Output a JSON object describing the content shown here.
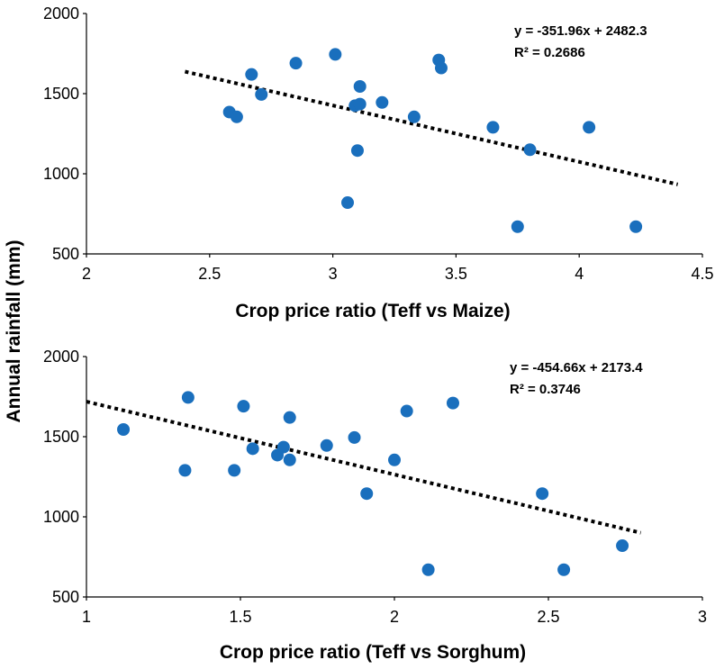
{
  "ylabel": "Annual rainfall (mm)",
  "chart_data": [
    {
      "type": "scatter",
      "xlabel": "Crop price ratio (Teff vs Maize)",
      "xlim": [
        2,
        4.5
      ],
      "ylim": [
        500,
        2000
      ],
      "xticks": [
        "2",
        "2.5",
        "3",
        "3.5",
        "4",
        "4.5"
      ],
      "yticks": [
        "500",
        "1000",
        "1500",
        "2000"
      ],
      "equation": "y = -351.96x + 2482.3",
      "r2": "R² = 0.2686",
      "trend": {
        "slope": -351.96,
        "intercept": 2482.3,
        "x_range": [
          2.4,
          4.4
        ]
      },
      "marker_color": "#1a6fbd",
      "points": [
        [
          2.58,
          1385
        ],
        [
          2.61,
          1355
        ],
        [
          2.67,
          1620
        ],
        [
          2.71,
          1495
        ],
        [
          2.85,
          1690
        ],
        [
          3.01,
          1745
        ],
        [
          3.06,
          820
        ],
        [
          3.09,
          1425
        ],
        [
          3.1,
          1145
        ],
        [
          3.11,
          1545
        ],
        [
          3.11,
          1435
        ],
        [
          3.2,
          1445
        ],
        [
          3.33,
          1355
        ],
        [
          3.43,
          1710
        ],
        [
          3.44,
          1660
        ],
        [
          3.65,
          1290
        ],
        [
          3.75,
          670
        ],
        [
          3.8,
          1150
        ],
        [
          4.04,
          1290
        ],
        [
          4.23,
          670
        ]
      ]
    },
    {
      "type": "scatter",
      "xlabel": "Crop price ratio (Teff vs Sorghum)",
      "xlim": [
        1,
        3
      ],
      "ylim": [
        500,
        2000
      ],
      "xticks": [
        "1",
        "1.5",
        "2",
        "2.5",
        "3"
      ],
      "yticks": [
        "500",
        "1000",
        "1500",
        "2000"
      ],
      "equation": "y = -454.66x + 2173.4",
      "r2": "R² = 0.3746",
      "trend": {
        "slope": -454.66,
        "intercept": 2173.4,
        "x_range": [
          1.0,
          2.8
        ]
      },
      "marker_color": "#1a6fbd",
      "points": [
        [
          1.12,
          1545
        ],
        [
          1.32,
          1290
        ],
        [
          1.33,
          1745
        ],
        [
          1.48,
          1290
        ],
        [
          1.51,
          1690
        ],
        [
          1.54,
          1425
        ],
        [
          1.62,
          1385
        ],
        [
          1.64,
          1435
        ],
        [
          1.66,
          1620
        ],
        [
          1.66,
          1355
        ],
        [
          1.78,
          1445
        ],
        [
          1.87,
          1495
        ],
        [
          1.91,
          1145
        ],
        [
          2.0,
          1355
        ],
        [
          2.04,
          1660
        ],
        [
          2.11,
          670
        ],
        [
          2.19,
          1710
        ],
        [
          2.48,
          1145
        ],
        [
          2.55,
          670
        ],
        [
          2.74,
          820
        ]
      ]
    }
  ]
}
